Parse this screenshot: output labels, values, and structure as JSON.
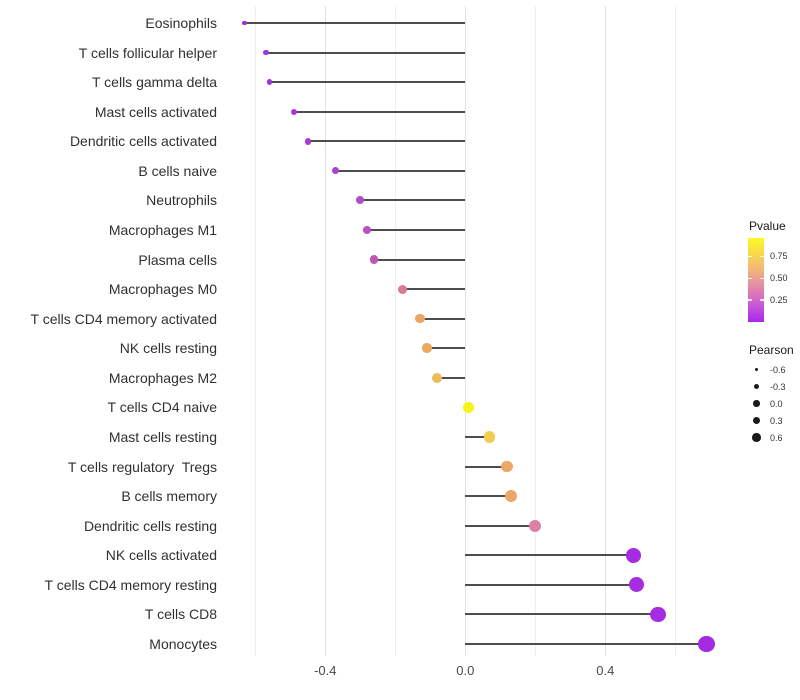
{
  "chart_data": {
    "type": "scatter",
    "variant": "horizontal lollipop (segments from 0 with colored end dots)",
    "title": "",
    "xlabel": "",
    "ylabel": "",
    "x_axis": {
      "tick_labels": [
        "-0.4",
        "0.0",
        "0.4"
      ],
      "tick_values": [
        -0.4,
        0.0,
        0.4
      ],
      "minor_tick_values": [
        -0.6,
        -0.2,
        0.2,
        0.6
      ],
      "range": [
        -0.7,
        0.77
      ]
    },
    "baseline": 0,
    "grid": true,
    "points": [
      {
        "label": "Eosinophils",
        "pearson": -0.63,
        "color": "#9A2FD6"
      },
      {
        "label": "T cells follicular helper",
        "pearson": -0.57,
        "color": "#A133DB"
      },
      {
        "label": "T cells gamma delta",
        "pearson": -0.56,
        "color": "#A133DB"
      },
      {
        "label": "Mast cells activated",
        "pearson": -0.49,
        "color": "#A338D8"
      },
      {
        "label": "Dendritic cells activated",
        "pearson": -0.45,
        "color": "#A63BD6"
      },
      {
        "label": "B cells naive",
        "pearson": -0.37,
        "color": "#A942D2"
      },
      {
        "label": "Neutrophils",
        "pearson": -0.3,
        "color": "#B04BC9"
      },
      {
        "label": "Macrophages M1",
        "pearson": -0.28,
        "color": "#BA4FC2"
      },
      {
        "label": "Plasma cells",
        "pearson": -0.26,
        "color": "#C356B2"
      },
      {
        "label": "Macrophages M0",
        "pearson": -0.18,
        "color": "#D87A90"
      },
      {
        "label": "T cells CD4 memory activated",
        "pearson": -0.13,
        "color": "#ECA566"
      },
      {
        "label": "NK cells resting",
        "pearson": -0.11,
        "color": "#ECA95E"
      },
      {
        "label": "Macrophages M2",
        "pearson": -0.08,
        "color": "#EFBA5C"
      },
      {
        "label": "T cells CD4 naive",
        "pearson": 0.01,
        "color": "#F5F318"
      },
      {
        "label": "Mast cells resting",
        "pearson": 0.07,
        "color": "#F0CC50"
      },
      {
        "label": "T cells regulatory  Tregs",
        "pearson": 0.12,
        "color": "#ECA667"
      },
      {
        "label": "B cells memory",
        "pearson": 0.13,
        "color": "#ECA76B"
      },
      {
        "label": "Dendritic cells resting",
        "pearson": 0.2,
        "color": "#DC80A6"
      },
      {
        "label": "NK cells activated",
        "pearson": 0.48,
        "color": "#A52CE1"
      },
      {
        "label": "T cells CD4 memory resting",
        "pearson": 0.49,
        "color": "#A52CE1"
      },
      {
        "label": "T cells CD8",
        "pearson": 0.55,
        "color": "#A52CE1"
      },
      {
        "label": "Monocytes",
        "pearson": 0.69,
        "color": "#A42BE1"
      }
    ],
    "legends": {
      "pvalue": {
        "title": "Pvalue",
        "tick_labels": [
          "0.75",
          "0.50",
          "0.25"
        ],
        "tick_values": [
          0.75,
          0.5,
          0.25
        ],
        "range": [
          0,
          0.96
        ],
        "gradient_top_to_bottom": [
          "#FCF921",
          "#F8DC48",
          "#F3BE71",
          "#E89C95",
          "#DA76B9",
          "#C44FDC",
          "#A826F0"
        ]
      },
      "pearson": {
        "title": "Pearson",
        "tick_labels": [
          "-0.6",
          "-0.3",
          "0.0",
          "0.3",
          "0.6"
        ],
        "tick_values": [
          -0.6,
          -0.3,
          0.0,
          0.3,
          0.6
        ],
        "key_color": "#1A1A1A"
      }
    }
  },
  "colors": {
    "background": "#FFFFFF",
    "grid_major": "#E2E2E2",
    "grid_minor": "#EFEFEF",
    "stem": "#4D4D4D",
    "axis_text": "#333333"
  }
}
